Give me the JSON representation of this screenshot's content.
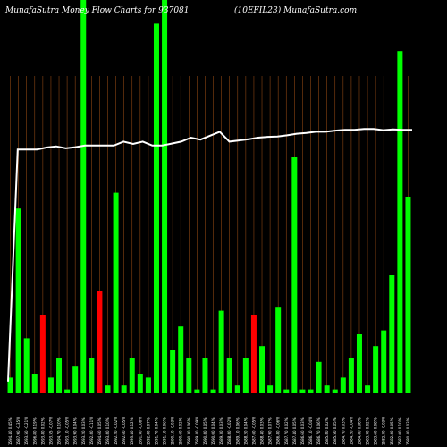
{
  "chart_data": {
    "type": "bar",
    "title_left": "MunafaSutra  Money Flow  Charts for 937081",
    "title_right": "(10EFIL23) MunafaSutra.com",
    "ylim": [
      0,
      100
    ],
    "colors": {
      "up": "#00ff00",
      "down": "#ff0000",
      "line": "#ffffff",
      "grid": "#8b4513",
      "background": "#000000"
    },
    "categories": [
      "Wed 05 Feb 2025",
      "Tue 04 Feb 2025",
      "Mon 03 Feb 2025",
      "Fri 31 Jan 2025",
      "Thu 30 Jan 2025",
      "Wed 29 Jan 2025",
      "Tue 28 Jan 2025",
      "Mon 27 Jan 2025",
      "Fri 24 Jan 2025",
      "Thu 23 Jan 2025",
      "Wed 22 Jan 2025",
      "Tue 21 Jan 2025",
      "Mon 20 Jan 2025",
      "Fri 17 Jan 2025",
      "Thu 16 Jan 2025",
      "Wed 15 Jan 2025",
      "Tue 14 Jan 2025",
      "Mon 13 Jan 2025",
      "Fri 10 Jan 2025",
      "Thu 09 Jan 2025",
      "Wed 08 Jan 2025",
      "Tue 07 Jan 2025",
      "Mon 06 Jan 2025",
      "Fri 03 Jan 2025",
      "Thu 02 Jan 2025",
      "Wed 01 Jan 2025",
      "Tue 31 Dec 2024",
      "Mon 30 Dec 2024",
      "Fri 27 Dec 2024",
      "Thu 26 Dec 2024",
      "Tue 24 Dec 2024",
      "Mon 23 Dec 2024",
      "Fri 20 Dec 2024",
      "Thu 19 Dec 2024",
      "Wed 18 Dec 2024",
      "Tue 17 Dec 2024",
      "Mon 16 Dec 2024",
      "Fri 13 Dec 2024",
      "Thu 12 Dec 2024",
      "Wed 11 Dec 2024",
      "Tue 10 Dec 2024",
      "Mon 09 Dec 2024",
      "Fri 06 Dec 2024",
      "Thu 05 Dec 2024",
      "Wed 04 Dec 2024",
      "Tue 03 Dec 2024",
      "Mon 02 Dec 2024",
      "Fri 29 Nov 2024",
      "Thu 28 Nov 2024",
      "Wed 27 Nov 2024"
    ],
    "xlabels": [
      "1594.40 0.45%",
      "1587.90 -0.35%",
      "1593.50 -0.21%",
      "1596.80 0.19%",
      "1593.80 0.02%",
      "1593.55 -0.07%",
      "1594.70 0.10%",
      "1593.10 -0.05%",
      "1593.90 0.04%",
      "1593.20 0.03%",
      "1592.80 -0.11%",
      "1594.60 0.05%",
      "1593.80 0.10%",
      "1592.20 -0.02%",
      "1592.60 -0.05%",
      "1593.40 0.12%",
      "1591.50 -0.08%",
      "1592.80 0.07%",
      "1591.70 0.04%",
      "1591.10 0.06%",
      "1590.10 -0.03%",
      "1590.60 0.02%",
      "1590.30 0.06%",
      "1589.40 -0.09%",
      "1590.80 0.05%",
      "1590.00 0.04%",
      "1589.30 0.03%",
      "1588.80 -0.02%",
      "1589.10 0.06%",
      "1588.20 0.04%",
      "1587.60 -0.05%",
      "1588.40 0.03%",
      "1587.90 0.07%",
      "1586.80 -0.06%",
      "1587.70 0.02%",
      "1587.40 0.05%",
      "1586.60 0.03%",
      "1586.10 -0.04%",
      "1586.70 0.06%",
      "1585.80 0.02%",
      "1585.50 0.05%",
      "1584.70 0.03%",
      "1584.20 -0.04%",
      "1584.80 0.06%",
      "1583.90 0.02%",
      "1583.60 0.08%",
      "1582.30 -0.03%",
      "1582.80 0.05%",
      "1582.00 0.10%",
      "1580.40 0.03%"
    ],
    "values": [
      4,
      47,
      14,
      5,
      20,
      4,
      9,
      1,
      7,
      100,
      9,
      26,
      2,
      51,
      2,
      9,
      5,
      4,
      94,
      100,
      11,
      17,
      9,
      1,
      9,
      1,
      21,
      9,
      2,
      9,
      20,
      12,
      2,
      22,
      1,
      60,
      1,
      1,
      8,
      2,
      1,
      4,
      9,
      15,
      2,
      12,
      16,
      30,
      87,
      50
    ],
    "colors_per_bar": [
      "up",
      "up",
      "up",
      "up",
      "down",
      "up",
      "up",
      "up",
      "up",
      "up",
      "up",
      "down",
      "up",
      "up",
      "up",
      "up",
      "up",
      "up",
      "up",
      "up",
      "up",
      "up",
      "up",
      "up",
      "up",
      "up",
      "up",
      "up",
      "up",
      "up",
      "down",
      "up",
      "up",
      "up",
      "up",
      "up",
      "up",
      "up",
      "up",
      "up",
      "up",
      "up",
      "up",
      "up",
      "up",
      "up",
      "up",
      "up",
      "up",
      "up"
    ],
    "line_values": [
      3,
      62,
      62,
      62,
      62,
      62,
      62,
      62,
      62,
      62,
      63,
      63,
      63,
      63,
      63,
      64,
      63,
      64,
      63,
      63,
      63,
      64,
      64,
      64,
      64,
      63,
      63,
      64,
      64,
      64,
      65,
      64,
      63,
      63,
      64,
      64,
      65,
      65,
      65,
      66,
      66,
      66,
      66,
      67,
      66,
      66,
      67,
      67,
      67,
      66
    ],
    "line_profile": [
      3,
      62,
      62,
      62,
      62.5,
      62.8,
      62.3,
      62.6,
      63,
      63,
      63,
      63,
      64,
      63.4,
      64,
      63,
      63,
      63.5,
      64,
      65,
      64.5,
      65.5,
      66.5,
      64,
      64.3,
      64.6,
      65,
      65.2,
      65.3,
      65.6,
      66,
      66.2,
      66.5,
      66.5,
      66.8,
      67,
      67,
      67.2,
      67.2,
      66.9,
      67.1,
      67,
      67
    ]
  }
}
